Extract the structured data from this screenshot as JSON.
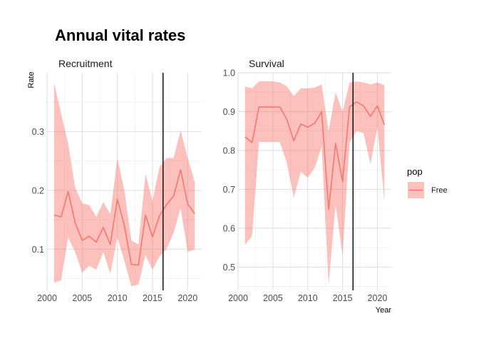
{
  "chart_data": {
    "type": "line",
    "title": "Annual vital rates",
    "ylabel": "Rate",
    "xlabel": "Year",
    "legend": {
      "title": "pop",
      "entries": [
        "Free"
      ],
      "placement": "right"
    },
    "colors": {
      "line": "#F8766D",
      "ribbon": "#F8766D",
      "vline": "#000000",
      "grid": "#dedede"
    },
    "vline_x": 2016.5,
    "grid": true,
    "panels": [
      {
        "name": "Recruitment",
        "xlim": [
          2000,
          2022
        ],
        "ylim": [
          0.03,
          0.4
        ],
        "xticks": [
          2000,
          2005,
          2010,
          2015,
          2020
        ],
        "yticks": [
          0.1,
          0.2,
          0.3
        ],
        "ytick_labels": [
          "0.1",
          "0.2",
          "0.3"
        ],
        "series": [
          {
            "name": "Free",
            "x": [
              2001,
              2002,
              2003,
              2004,
              2005,
              2006,
              2007,
              2008,
              2009,
              2010,
              2011,
              2012,
              2013,
              2014,
              2015,
              2016,
              2017,
              2018,
              2019,
              2020,
              2021
            ],
            "y": [
              0.158,
              0.155,
              0.198,
              0.145,
              0.115,
              0.122,
              0.112,
              0.137,
              0.108,
              0.185,
              0.14,
              0.074,
              0.073,
              0.158,
              0.121,
              0.157,
              0.176,
              0.19,
              0.235,
              0.177,
              0.16
            ],
            "lower": [
              0.043,
              0.047,
              0.12,
              0.095,
              0.06,
              0.072,
              0.065,
              0.095,
              0.058,
              0.12,
              0.08,
              0.037,
              0.04,
              0.09,
              0.065,
              0.088,
              0.1,
              0.128,
              0.17,
              0.095,
              0.1
            ],
            "upper": [
              0.383,
              0.33,
              0.28,
              0.205,
              0.178,
              0.175,
              0.155,
              0.18,
              0.16,
              0.255,
              0.2,
              0.115,
              0.108,
              0.228,
              0.182,
              0.24,
              0.255,
              0.255,
              0.302,
              0.255,
              0.215
            ]
          }
        ]
      },
      {
        "name": "Survival",
        "xlim": [
          2000,
          2022
        ],
        "ylim": [
          0.44,
          1.0
        ],
        "xticks": [
          2000,
          2005,
          2010,
          2015,
          2020
        ],
        "yticks": [
          0.5,
          0.6,
          0.7,
          0.8,
          0.9,
          1.0
        ],
        "ytick_labels": [
          "0.5",
          "0.6",
          "0.7",
          "0.8",
          "0.9",
          "1.0"
        ],
        "series": [
          {
            "name": "Free",
            "x": [
              2001,
              2002,
              2003,
              2004,
              2005,
              2006,
              2007,
              2008,
              2009,
              2010,
              2011,
              2012,
              2013,
              2014,
              2015,
              2016,
              2017,
              2018,
              2019,
              2020,
              2021
            ],
            "y": [
              0.835,
              0.82,
              0.912,
              0.912,
              0.912,
              0.912,
              0.88,
              0.825,
              0.868,
              0.86,
              0.87,
              0.9,
              0.648,
              0.818,
              0.72,
              0.912,
              0.925,
              0.915,
              0.888,
              0.915,
              0.866
            ],
            "lower": [
              0.557,
              0.58,
              0.822,
              0.822,
              0.822,
              0.822,
              0.768,
              0.678,
              0.745,
              0.73,
              0.755,
              0.81,
              0.455,
              0.66,
              0.53,
              0.82,
              0.85,
              0.845,
              0.765,
              0.86,
              0.67
            ],
            "upper": [
              0.965,
              0.96,
              0.978,
              0.978,
              0.978,
              0.975,
              0.965,
              0.94,
              0.96,
              0.96,
              0.962,
              0.97,
              0.85,
              0.95,
              0.9,
              0.975,
              0.978,
              0.975,
              0.97,
              0.975,
              0.968
            ]
          }
        ]
      }
    ]
  }
}
